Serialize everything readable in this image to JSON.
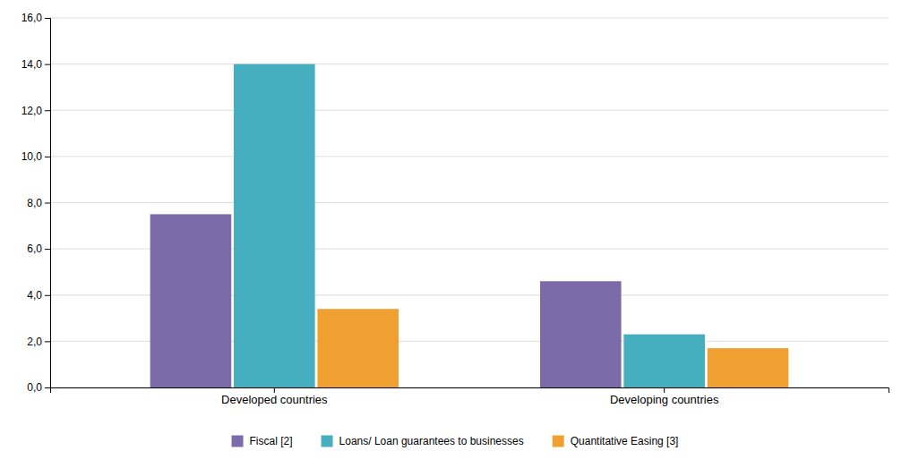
{
  "chart_data": {
    "type": "bar",
    "categories": [
      "Developed countries",
      "Developing countries"
    ],
    "series": [
      {
        "name": "Fiscal [2]",
        "color": "#7B6BA8",
        "values": [
          7.5,
          4.6
        ]
      },
      {
        "name": "Loans/ Loan guarantees to businesses",
        "color": "#45AEBF",
        "values": [
          14.0,
          2.3
        ]
      },
      {
        "name": "Quantitative Easing [3]",
        "color": "#F0A030",
        "values": [
          3.4,
          1.7
        ]
      }
    ],
    "ylim": [
      0,
      16.0
    ],
    "yticks": [
      {
        "value": 0.0,
        "label": "0,0"
      },
      {
        "value": 2.0,
        "label": "2,0"
      },
      {
        "value": 4.0,
        "label": "4,0"
      },
      {
        "value": 6.0,
        "label": "6,0"
      },
      {
        "value": 8.0,
        "label": "8,0"
      },
      {
        "value": 10.0,
        "label": "10,0"
      },
      {
        "value": 12.0,
        "label": "12,0"
      },
      {
        "value": 14.0,
        "label": "14,0"
      },
      {
        "value": 16.0,
        "label": "16,0"
      }
    ],
    "grid": true,
    "legend": "bottom"
  }
}
